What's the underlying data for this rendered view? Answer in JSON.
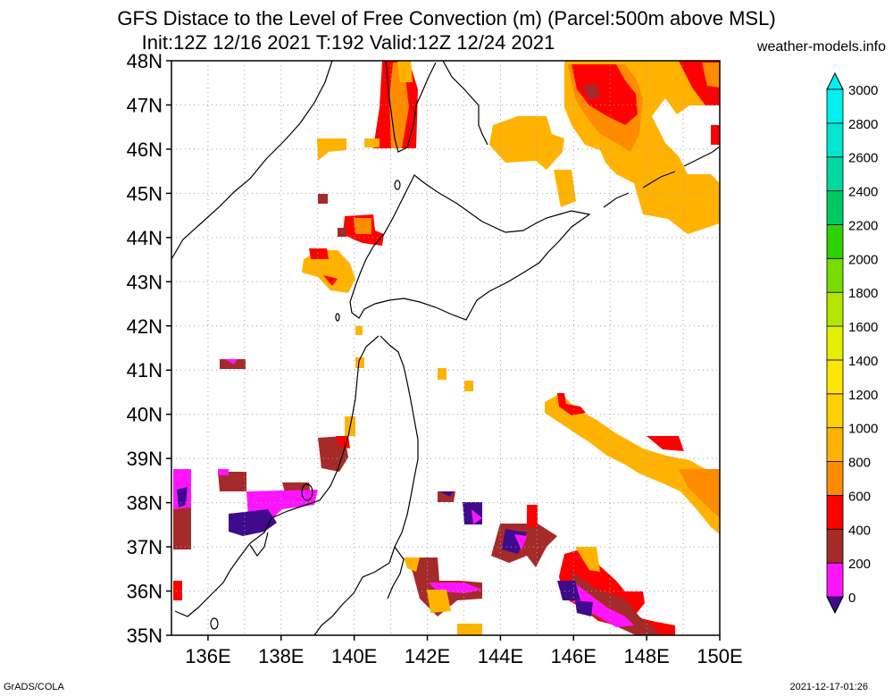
{
  "title": {
    "line1": "GFS Distace to the Level of Free Convection (m) (Parcel:500m above MSL)",
    "line2": "Init:12Z 12/16 2021 T:192 Valid:12Z 12/24 2021"
  },
  "source_site": "weather-models.info",
  "footer": {
    "left": "GrADS/COLA",
    "right": "2021-12-17-01:26"
  },
  "map": {
    "lon_range": [
      135,
      150
    ],
    "lat_range": [
      35,
      48
    ],
    "lon_ticks": [
      "136E",
      "138E",
      "140E",
      "142E",
      "144E",
      "146E",
      "148E",
      "150E"
    ],
    "lat_ticks": [
      "35N",
      "36N",
      "37N",
      "38N",
      "39N",
      "40N",
      "41N",
      "42N",
      "43N",
      "44N",
      "45N",
      "46N",
      "47N",
      "48N"
    ],
    "grid": "dotted"
  },
  "colorbar": {
    "labels": [
      "0",
      "200",
      "400",
      "600",
      "800",
      "1000",
      "1200",
      "1400",
      "1600",
      "1800",
      "2000",
      "2200",
      "2400",
      "2600",
      "2800",
      "3000"
    ],
    "colors": [
      "#3f0a8c",
      "#ff14ff",
      "#a52a2a",
      "#ff0000",
      "#ff8c00",
      "#ffb300",
      "#ffcf00",
      "#ffe600",
      "#e5f000",
      "#b4e600",
      "#78dc00",
      "#2ed200",
      "#00c860",
      "#00d8a0",
      "#00e6d2",
      "#00f0f0"
    ]
  },
  "colors": {
    "frame": "#000000",
    "grid": "#a0a0a0",
    "coast": "#000000"
  }
}
